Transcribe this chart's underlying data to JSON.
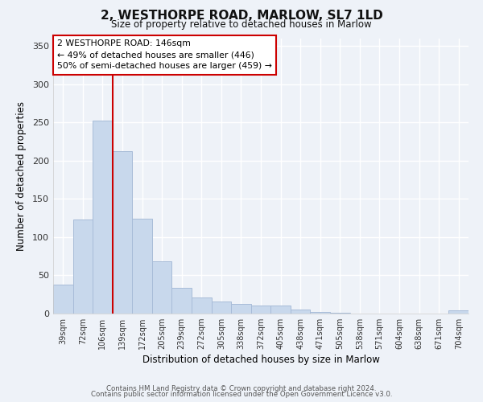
{
  "title": "2, WESTHORPE ROAD, MARLOW, SL7 1LD",
  "subtitle": "Size of property relative to detached houses in Marlow",
  "xlabel": "Distribution of detached houses by size in Marlow",
  "ylabel": "Number of detached properties",
  "bar_color": "#c8d8ec",
  "bar_edge_color": "#a8bcd8",
  "categories": [
    "39sqm",
    "72sqm",
    "106sqm",
    "139sqm",
    "172sqm",
    "205sqm",
    "239sqm",
    "272sqm",
    "305sqm",
    "338sqm",
    "372sqm",
    "405sqm",
    "438sqm",
    "471sqm",
    "505sqm",
    "538sqm",
    "571sqm",
    "604sqm",
    "638sqm",
    "671sqm",
    "704sqm"
  ],
  "values": [
    38,
    123,
    252,
    212,
    124,
    68,
    34,
    21,
    16,
    13,
    11,
    10,
    5,
    2,
    1,
    0,
    0,
    0,
    0,
    0,
    4
  ],
  "vline_color": "#cc0000",
  "vline_bar_index": 3,
  "annotation_title": "2 WESTHORPE ROAD: 146sqm",
  "annotation_line1": "← 49% of detached houses are smaller (446)",
  "annotation_line2": "50% of semi-detached houses are larger (459) →",
  "annotation_box_color": "#ffffff",
  "annotation_border_color": "#cc0000",
  "ylim": [
    0,
    360
  ],
  "yticks": [
    0,
    50,
    100,
    150,
    200,
    250,
    300,
    350
  ],
  "footer1": "Contains HM Land Registry data © Crown copyright and database right 2024.",
  "footer2": "Contains public sector information licensed under the Open Government Licence v3.0.",
  "background_color": "#eef2f8"
}
